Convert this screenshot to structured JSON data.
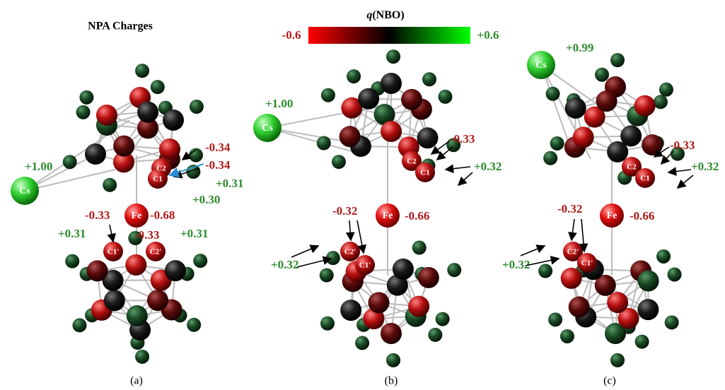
{
  "title": "NPA Charges",
  "colorbar": {
    "symbol": "q",
    "label": "(NBO)",
    "min": "-0.6",
    "max": "+0.6"
  },
  "panels": [
    {
      "label": "(a)",
      "atoms": [
        "Cs",
        "Fe",
        "C2",
        "C1",
        "C1'",
        "C2'"
      ],
      "charges": [
        "+1.00",
        "-0.34",
        "-0.34",
        "+0.31",
        "+0.30",
        "-0.68",
        "-0.33",
        "-0.33",
        "+0.31",
        "+0.31"
      ]
    },
    {
      "label": "(b)",
      "atoms": [
        "Cs",
        "Fe",
        "C2",
        "C1",
        "C2'",
        "C1'"
      ],
      "charges": [
        "+1.00",
        "-0.33",
        "+0.32",
        "-0.32",
        "-0.66",
        "+0.32"
      ]
    },
    {
      "label": "(c)",
      "atoms": [
        "Cs",
        "Fe",
        "C2",
        "C1",
        "C2'",
        "C1'"
      ],
      "charges": [
        "+0.99",
        "-0.33",
        "+0.32",
        "-0.32",
        "-0.66",
        "+0.32"
      ]
    }
  ]
}
